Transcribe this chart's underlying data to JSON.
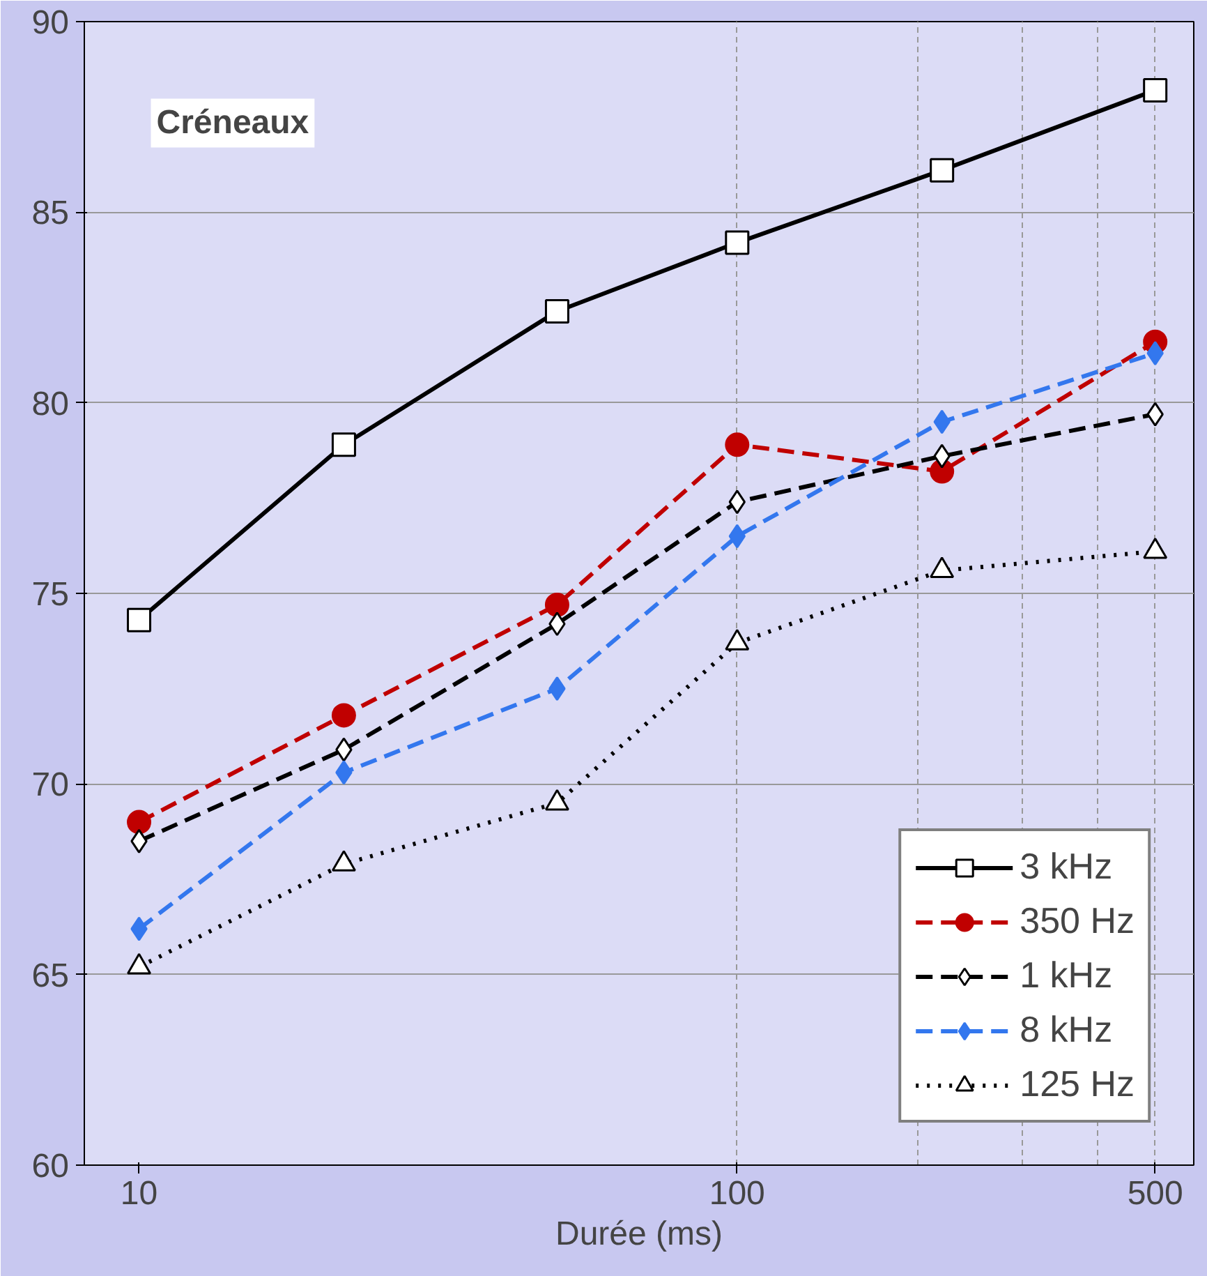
{
  "chart_data": {
    "type": "line",
    "xlabel": "Durée (ms)",
    "annotations": [
      "Créneaux"
    ],
    "x": [
      10,
      22,
      50,
      100,
      220,
      500
    ],
    "series": [
      {
        "name": "3 kHz",
        "color": "#000000",
        "marker": "square",
        "line_style": "solid",
        "values": [
          74.3,
          78.9,
          82.4,
          84.2,
          86.1,
          88.2
        ]
      },
      {
        "name": "350 Hz",
        "color": "#c00000",
        "marker": "circle",
        "line_style": "dashed",
        "values": [
          69.0,
          71.8,
          74.7,
          78.9,
          78.2,
          81.6
        ]
      },
      {
        "name": "1 kHz",
        "color": "#000000",
        "marker": "diamond",
        "line_style": "dashed",
        "values": [
          68.5,
          70.9,
          74.2,
          77.4,
          78.6,
          79.7
        ]
      },
      {
        "name": "8 kHz",
        "color": "#3377ee",
        "marker": "diamond",
        "line_style": "dashed",
        "values": [
          66.2,
          70.3,
          72.5,
          76.5,
          79.5,
          81.3
        ]
      },
      {
        "name": "125 Hz",
        "color": "#000000",
        "marker": "triangle",
        "line_style": "dotted",
        "values": [
          65.2,
          67.9,
          69.5,
          73.7,
          75.6,
          76.1
        ]
      }
    ],
    "log": "x",
    "xlim": [
      8.1,
      580
    ],
    "xticks": [
      10,
      100,
      500
    ],
    "ylim": [
      60,
      90
    ],
    "yticks": [
      60,
      65,
      70,
      75,
      80,
      85,
      90
    ],
    "grid": true,
    "legend": "bottom right"
  }
}
